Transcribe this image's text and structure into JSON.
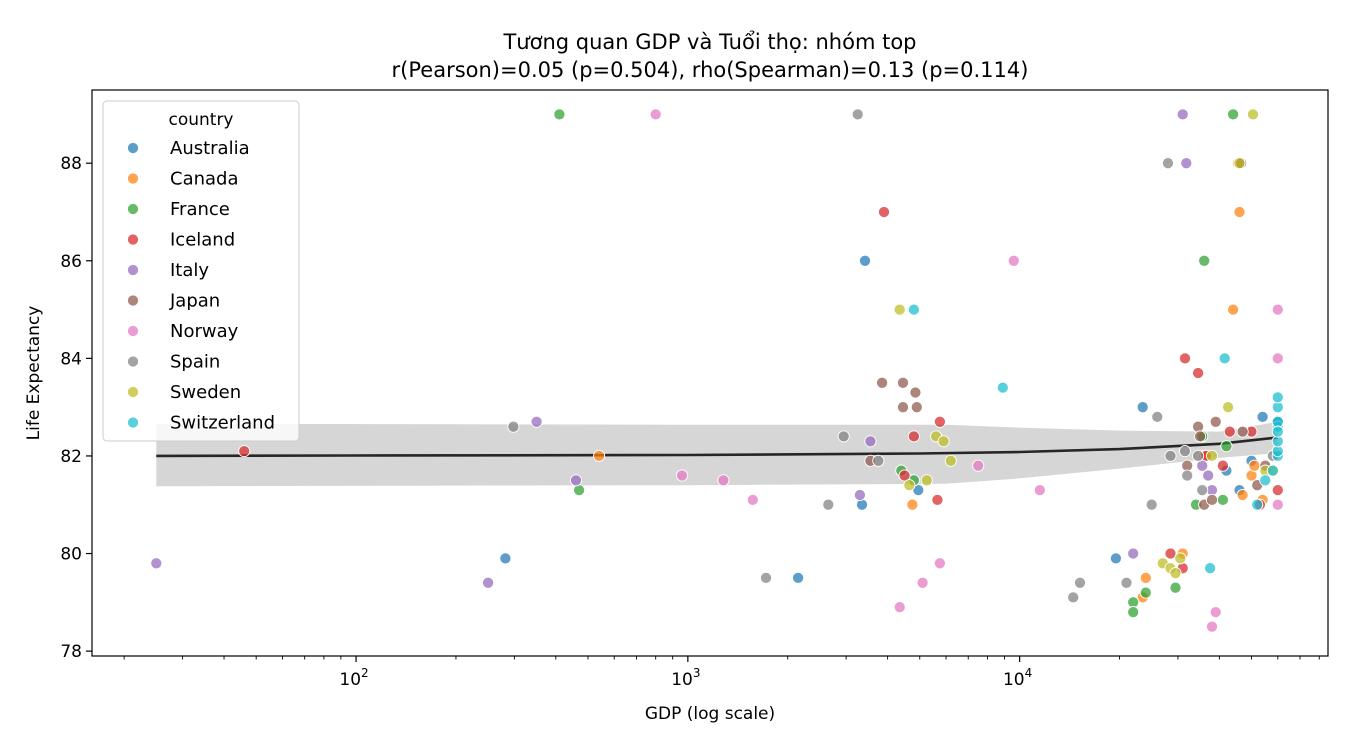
{
  "chart_data": {
    "type": "scatter",
    "title_line1": "Tương quan GDP và Tuổi thọ: nhóm top",
    "title_line2": "r(Pearson)=0.05 (p=0.504), rho(Spearman)=0.13 (p=0.114)",
    "xlabel": "GDP (log scale)",
    "ylabel": "Life Expectancy",
    "x_scale": "log",
    "xlim": [
      16,
      85000
    ],
    "ylim": [
      77.9,
      89.5
    ],
    "x_ticks": [
      {
        "value": 100,
        "base": "10",
        "exp": "2"
      },
      {
        "value": 1000,
        "base": "10",
        "exp": "3"
      },
      {
        "value": 10000,
        "base": "10",
        "exp": "4"
      }
    ],
    "y_ticks": [
      "78",
      "80",
      "82",
      "84",
      "86",
      "88"
    ],
    "grid": false,
    "legend": {
      "title": "country",
      "placement": "upper-left",
      "entries": [
        {
          "label": "Australia",
          "color": "#1f77b4"
        },
        {
          "label": "Canada",
          "color": "#ff7f0e"
        },
        {
          "label": "France",
          "color": "#2ca02c"
        },
        {
          "label": "Iceland",
          "color": "#d62728"
        },
        {
          "label": "Italy",
          "color": "#9467bd"
        },
        {
          "label": "Japan",
          "color": "#8c564b"
        },
        {
          "label": "Norway",
          "color": "#e377c2"
        },
        {
          "label": "Spain",
          "color": "#7f7f7f"
        },
        {
          "label": "Sweden",
          "color": "#bcbd22"
        },
        {
          "label": "Switzerland",
          "color": "#17becf"
        }
      ]
    },
    "regression": {
      "color": "#262626",
      "band_color": "#d6d6d6",
      "line": [
        [
          25,
          82.0
        ],
        [
          100,
          82.01
        ],
        [
          1000,
          82.02
        ],
        [
          5000,
          82.05
        ],
        [
          10000,
          82.08
        ],
        [
          20000,
          82.14
        ],
        [
          40000,
          82.25
        ],
        [
          60000,
          82.38
        ]
      ],
      "band_upper": [
        [
          25,
          82.66
        ],
        [
          1000,
          82.64
        ],
        [
          6000,
          82.64
        ],
        [
          10000,
          82.58
        ],
        [
          20000,
          82.52
        ],
        [
          40000,
          82.5
        ],
        [
          60000,
          82.7
        ]
      ],
      "band_lower": [
        [
          25,
          81.38
        ],
        [
          1000,
          81.4
        ],
        [
          6000,
          81.43
        ],
        [
          10000,
          81.54
        ],
        [
          20000,
          81.74
        ],
        [
          40000,
          81.96
        ],
        [
          60000,
          82.06
        ]
      ]
    },
    "series": [
      {
        "name": "Australia",
        "points": [
          [
            282,
            79.9
          ],
          [
            2150,
            79.5
          ],
          [
            3350,
            81.0
          ],
          [
            3420,
            86.0
          ],
          [
            4950,
            81.3
          ],
          [
            19500,
            79.9
          ],
          [
            23500,
            83.0
          ],
          [
            42000,
            81.7
          ],
          [
            46000,
            81.3
          ],
          [
            50000,
            81.9
          ],
          [
            54000,
            82.8
          ],
          [
            60000,
            82.7
          ]
        ]
      },
      {
        "name": "Canada",
        "points": [
          [
            540,
            82.0
          ],
          [
            4750,
            81.0
          ],
          [
            23500,
            79.1
          ],
          [
            24000,
            79.5
          ],
          [
            31000,
            80.0
          ],
          [
            36000,
            82.0
          ],
          [
            44000,
            85.0
          ],
          [
            45500,
            88.0
          ],
          [
            46000,
            87.0
          ],
          [
            47000,
            81.2
          ],
          [
            50000,
            81.6
          ],
          [
            51000,
            81.8
          ],
          [
            54000,
            81.1
          ]
        ]
      },
      {
        "name": "France",
        "points": [
          [
            410,
            89.0
          ],
          [
            470,
            81.3
          ],
          [
            4400,
            81.7
          ],
          [
            4800,
            81.5
          ],
          [
            22000,
            79.0
          ],
          [
            22000,
            78.8
          ],
          [
            24000,
            79.2
          ],
          [
            29500,
            79.3
          ],
          [
            34000,
            81.0
          ],
          [
            35500,
            82.4
          ],
          [
            36000,
            86.0
          ],
          [
            41000,
            81.1
          ],
          [
            42000,
            82.2
          ],
          [
            44000,
            89.0
          ]
        ]
      },
      {
        "name": "Iceland",
        "points": [
          [
            46,
            82.1
          ],
          [
            3900,
            87.0
          ],
          [
            4500,
            81.6
          ],
          [
            4800,
            82.4
          ],
          [
            5650,
            81.1
          ],
          [
            5750,
            82.7
          ],
          [
            28500,
            80.0
          ],
          [
            31000,
            79.7
          ],
          [
            31500,
            84.0
          ],
          [
            34500,
            83.7
          ],
          [
            36500,
            82.0
          ],
          [
            41000,
            81.8
          ],
          [
            43000,
            82.5
          ],
          [
            50000,
            82.5
          ],
          [
            53000,
            81.0
          ],
          [
            60000,
            81.3
          ]
        ]
      },
      {
        "name": "Italy",
        "points": [
          [
            25,
            79.8
          ],
          [
            250,
            79.4
          ],
          [
            350,
            82.7
          ],
          [
            460,
            81.5
          ],
          [
            3300,
            81.2
          ],
          [
            3550,
            82.3
          ],
          [
            22000,
            80.0
          ],
          [
            31000,
            89.0
          ],
          [
            31800,
            88.0
          ],
          [
            35500,
            81.8
          ],
          [
            37000,
            81.6
          ],
          [
            38000,
            81.3
          ]
        ]
      },
      {
        "name": "Japan",
        "points": [
          [
            3850,
            83.5
          ],
          [
            3550,
            81.9
          ],
          [
            4450,
            83.5
          ],
          [
            4450,
            83.0
          ],
          [
            4850,
            83.3
          ],
          [
            4900,
            83.0
          ],
          [
            32000,
            81.8
          ],
          [
            34500,
            82.6
          ],
          [
            35000,
            82.4
          ],
          [
            36000,
            81.0
          ],
          [
            38000,
            81.1
          ],
          [
            39000,
            82.7
          ],
          [
            46500,
            88.0
          ],
          [
            47000,
            82.5
          ],
          [
            52000,
            81.4
          ],
          [
            55000,
            81.8
          ]
        ]
      },
      {
        "name": "Norway",
        "points": [
          [
            800,
            89.0
          ],
          [
            960,
            81.6
          ],
          [
            1280,
            81.5
          ],
          [
            1570,
            81.1
          ],
          [
            4350,
            78.9
          ],
          [
            5100,
            79.4
          ],
          [
            5750,
            79.8
          ],
          [
            7500,
            81.8
          ],
          [
            9600,
            86.0
          ],
          [
            11500,
            81.3
          ],
          [
            38000,
            78.5
          ],
          [
            39000,
            78.8
          ],
          [
            60000,
            85.0
          ],
          [
            60000,
            84.0
          ],
          [
            60000,
            81.0
          ]
        ]
      },
      {
        "name": "Spain",
        "points": [
          [
            298,
            82.6
          ],
          [
            1720,
            79.5
          ],
          [
            2650,
            81.0
          ],
          [
            2950,
            82.4
          ],
          [
            3250,
            89.0
          ],
          [
            3750,
            81.9
          ],
          [
            14500,
            79.1
          ],
          [
            15200,
            79.4
          ],
          [
            21000,
            79.4
          ],
          [
            25000,
            81.0
          ],
          [
            26000,
            82.8
          ],
          [
            28000,
            88.0
          ],
          [
            28500,
            82.0
          ],
          [
            31500,
            82.1
          ],
          [
            32000,
            81.6
          ],
          [
            34500,
            82.0
          ],
          [
            35500,
            81.3
          ],
          [
            58000,
            82.0
          ]
        ]
      },
      {
        "name": "Sweden",
        "points": [
          [
            4350,
            85.0
          ],
          [
            4650,
            81.4
          ],
          [
            5250,
            81.5
          ],
          [
            5600,
            82.4
          ],
          [
            5900,
            82.3
          ],
          [
            6200,
            81.9
          ],
          [
            27000,
            79.8
          ],
          [
            28500,
            79.7
          ],
          [
            29500,
            79.6
          ],
          [
            30500,
            79.9
          ],
          [
            38000,
            82.0
          ],
          [
            42500,
            83.0
          ],
          [
            46000,
            88.0
          ],
          [
            50500,
            89.0
          ],
          [
            55000,
            81.7
          ],
          [
            58000,
            81.7
          ]
        ]
      },
      {
        "name": "Switzerland",
        "points": [
          [
            4800,
            85.0
          ],
          [
            8900,
            83.4
          ],
          [
            37500,
            79.7
          ],
          [
            41500,
            84.0
          ],
          [
            52000,
            81.0
          ],
          [
            55000,
            81.5
          ],
          [
            58000,
            81.7
          ],
          [
            60000,
            82.0
          ],
          [
            60000,
            82.1
          ],
          [
            60000,
            82.3
          ],
          [
            60000,
            82.6
          ],
          [
            60000,
            82.7
          ],
          [
            60000,
            83.0
          ],
          [
            60000,
            83.2
          ],
          [
            60000,
            82.5
          ]
        ]
      }
    ]
  }
}
